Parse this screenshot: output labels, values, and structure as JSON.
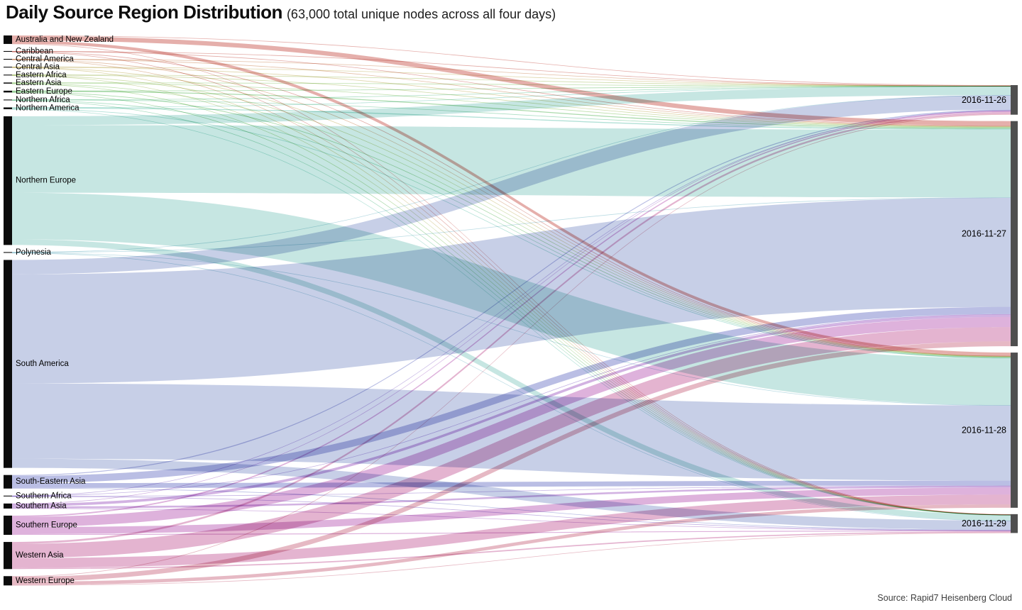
{
  "header": {
    "title": "Daily Source Region Distribution",
    "subtitle": "(63,000 total unique nodes across all four days)"
  },
  "footer": {
    "source_note": "Source: Rapid7 Heisenberg Cloud"
  },
  "chart_data": {
    "type": "sankey",
    "title": "Daily Source Region Distribution",
    "subtitle": "(63,000 total unique nodes across all four days)",
    "unit": "unique nodes",
    "total_unique_nodes": 63000,
    "node_bar_colors": {
      "left": "#0b0b0b",
      "right": "#4f4f4f"
    },
    "left_nodes": [
      {
        "name": "Australia and New Zealand",
        "color": "#e4aba6",
        "total": 1250
      },
      {
        "name": "Caribbean",
        "color": "#e0a49f",
        "total": 100
      },
      {
        "name": "Central America",
        "color": "#e2bca1",
        "total": 100
      },
      {
        "name": "Central Asia",
        "color": "#dcd3a4",
        "total": 100
      },
      {
        "name": "Eastern Africa",
        "color": "#ccdaa6",
        "total": 100
      },
      {
        "name": "Eastern Asia",
        "color": "#b9dda6",
        "total": 160
      },
      {
        "name": "Eastern Europe",
        "color": "#a6d8a8",
        "total": 260
      },
      {
        "name": "Northern Africa",
        "color": "#a6dcc0",
        "total": 111
      },
      {
        "name": "Northern America",
        "color": "#aedfd5",
        "total": 260
      },
      {
        "name": "Northern Europe",
        "color": "#c3e5e0",
        "total": 19000
      },
      {
        "name": "Polynesia",
        "color": "#b7dae3",
        "total": 100
      },
      {
        "name": "South America",
        "color": "#c4cce6",
        "total": 30700
      },
      {
        "name": "South-Eastern Asia",
        "color": "#b6bbe3",
        "total": 2000
      },
      {
        "name": "Southern Africa",
        "color": "#c2b0e3",
        "total": 100
      },
      {
        "name": "Southern Asia",
        "color": "#d0aee0",
        "total": 741
      },
      {
        "name": "Southern Europe",
        "color": "#dcaeda",
        "total": 2840
      },
      {
        "name": "Western Asia",
        "color": "#e3b0ce",
        "total": 4000
      },
      {
        "name": "Western Europe",
        "color": "#e5b5c1",
        "total": 1370
      }
    ],
    "right_nodes": [
      {
        "name": "2016-11-26",
        "total": 4368
      },
      {
        "name": "2016-11-27",
        "total": 33232
      },
      {
        "name": "2016-11-28",
        "total": 22910
      },
      {
        "name": "2016-11-29",
        "total": 2782
      }
    ],
    "links_format": [
      "source_index",
      "target_index",
      "value"
    ],
    "links": [
      [
        0,
        0,
        86
      ],
      [
        0,
        1,
        656
      ],
      [
        0,
        2,
        453
      ],
      [
        0,
        3,
        55
      ],
      [
        1,
        0,
        7
      ],
      [
        1,
        1,
        53
      ],
      [
        1,
        2,
        36
      ],
      [
        1,
        3,
        4
      ],
      [
        2,
        0,
        7
      ],
      [
        2,
        1,
        53
      ],
      [
        2,
        2,
        36
      ],
      [
        2,
        3,
        4
      ],
      [
        3,
        0,
        7
      ],
      [
        3,
        1,
        53
      ],
      [
        3,
        2,
        36
      ],
      [
        3,
        3,
        4
      ],
      [
        4,
        0,
        7
      ],
      [
        4,
        1,
        53
      ],
      [
        4,
        2,
        36
      ],
      [
        4,
        3,
        4
      ],
      [
        5,
        0,
        11
      ],
      [
        5,
        1,
        84
      ],
      [
        5,
        2,
        58
      ],
      [
        5,
        3,
        7
      ],
      [
        6,
        0,
        18
      ],
      [
        6,
        1,
        137
      ],
      [
        6,
        2,
        94
      ],
      [
        6,
        3,
        11
      ],
      [
        7,
        0,
        8
      ],
      [
        7,
        1,
        58
      ],
      [
        7,
        2,
        40
      ],
      [
        7,
        3,
        5
      ],
      [
        8,
        0,
        18
      ],
      [
        8,
        1,
        137
      ],
      [
        8,
        2,
        94
      ],
      [
        8,
        3,
        11
      ],
      [
        9,
        0,
        1311
      ],
      [
        9,
        1,
        9975
      ],
      [
        9,
        2,
        6878
      ],
      [
        9,
        3,
        836
      ],
      [
        10,
        0,
        7
      ],
      [
        10,
        1,
        53
      ],
      [
        10,
        2,
        36
      ],
      [
        10,
        3,
        4
      ],
      [
        11,
        0,
        2118
      ],
      [
        11,
        1,
        16118
      ],
      [
        11,
        2,
        11113
      ],
      [
        11,
        3,
        1351
      ],
      [
        12,
        0,
        138
      ],
      [
        12,
        1,
        1050
      ],
      [
        12,
        2,
        724
      ],
      [
        12,
        3,
        88
      ],
      [
        13,
        0,
        7
      ],
      [
        13,
        1,
        53
      ],
      [
        13,
        2,
        36
      ],
      [
        13,
        3,
        4
      ],
      [
        14,
        0,
        51
      ],
      [
        14,
        1,
        389
      ],
      [
        14,
        2,
        268
      ],
      [
        14,
        3,
        33
      ],
      [
        15,
        0,
        196
      ],
      [
        15,
        1,
        1491
      ],
      [
        15,
        2,
        1028
      ],
      [
        15,
        3,
        125
      ],
      [
        16,
        0,
        276
      ],
      [
        16,
        1,
        2100
      ],
      [
        16,
        2,
        1448
      ],
      [
        16,
        3,
        176
      ],
      [
        17,
        0,
        95
      ],
      [
        17,
        1,
        719
      ],
      [
        17,
        2,
        496
      ],
      [
        17,
        3,
        60
      ]
    ]
  }
}
